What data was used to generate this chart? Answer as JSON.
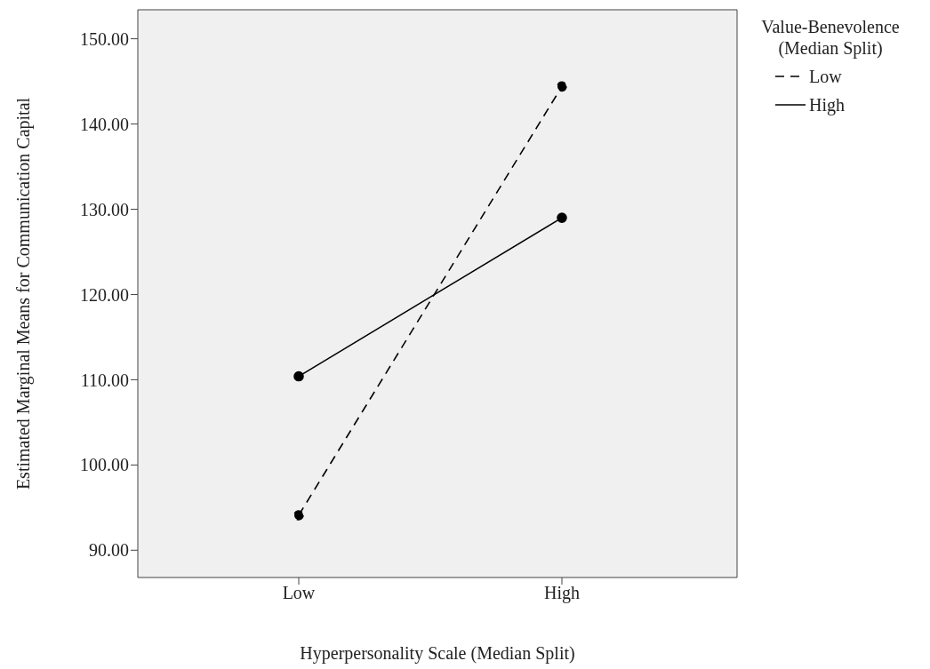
{
  "chart_data": {
    "type": "line",
    "xlabel": "Hyperpersonality Scale (Median Split)",
    "ylabel": "Estimated Marginal Means for Communication Capital",
    "legend_title": "Value-Benevolence (Median Split)",
    "categories": [
      "Low",
      "High"
    ],
    "series": [
      {
        "name": "Low",
        "color": "#000000",
        "line_style": "dashed",
        "values": [
          94.1,
          144.4
        ]
      },
      {
        "name": "High",
        "color": "#000000",
        "line_style": "solid",
        "values": [
          110.4,
          129.0
        ]
      }
    ],
    "ylim": [
      86.8,
      153.4
    ],
    "yticks": [
      {
        "value": 90,
        "label": "90.00"
      },
      {
        "value": 100,
        "label": "100.00"
      },
      {
        "value": 110,
        "label": "110.00"
      },
      {
        "value": 120,
        "label": "120.00"
      },
      {
        "value": 130,
        "label": "130.00"
      },
      {
        "value": 140,
        "label": "140.00"
      },
      {
        "value": 150,
        "label": "150.00"
      }
    ],
    "grid": false,
    "legend": "top right",
    "marker": "circle"
  }
}
